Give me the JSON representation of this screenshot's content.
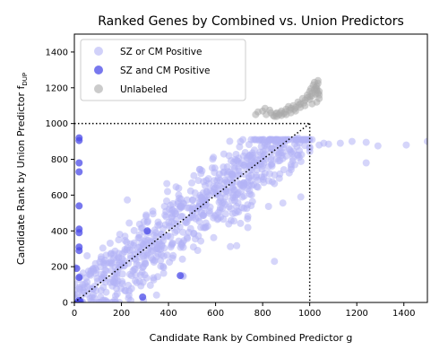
{
  "chart_data": {
    "type": "scatter",
    "title": "Ranked Genes by Combined vs. Union Predictors",
    "xlabel": "Candidate Rank by Combined Predictor g",
    "ylabel": "Candidate Rank by Union Predictor f",
    "ylabel_subscript": "DUP",
    "xlim": [
      0,
      1500
    ],
    "ylim": [
      0,
      1500
    ],
    "xticks": [
      0,
      200,
      400,
      600,
      800,
      1000,
      1200,
      1400
    ],
    "yticks": [
      0,
      200,
      400,
      600,
      800,
      1000,
      1200,
      1400
    ],
    "grid": false,
    "legend_position": "top-left",
    "reference_lines": [
      {
        "style": "dotted",
        "points": [
          [
            0,
            0
          ],
          [
            1000,
            1000
          ]
        ]
      },
      {
        "style": "dotted",
        "points": [
          [
            0,
            1000
          ],
          [
            1000,
            1000
          ]
        ]
      },
      {
        "style": "dotted",
        "points": [
          [
            1000,
            1000
          ],
          [
            1000,
            0
          ]
        ]
      }
    ],
    "series": [
      {
        "name": "SZ or CM Positive",
        "color": "#b3b3f5",
        "generator": "band",
        "count": 760,
        "extra_points": [
          [
            1040,
            880
          ],
          [
            1080,
            885
          ],
          [
            1130,
            890
          ],
          [
            1240,
            895
          ],
          [
            1290,
            875
          ],
          [
            1410,
            880
          ],
          [
            1500,
            900
          ],
          [
            1240,
            780
          ],
          [
            850,
            230
          ],
          [
            460,
            150
          ],
          [
            1010,
            910
          ],
          [
            1060,
            890
          ],
          [
            950,
            920
          ],
          [
            1180,
            900
          ]
        ],
        "values": []
      },
      {
        "name": "SZ and CM Positive",
        "color": "#4b4be8",
        "values": [
          [
            20,
            920
          ],
          [
            20,
            905
          ],
          [
            20,
            780
          ],
          [
            20,
            730
          ],
          [
            20,
            540
          ],
          [
            20,
            410
          ],
          [
            20,
            390
          ],
          [
            20,
            310
          ],
          [
            20,
            290
          ],
          [
            10,
            190
          ],
          [
            20,
            140
          ],
          [
            20,
            10
          ],
          [
            25,
            5
          ],
          [
            15,
            0
          ],
          [
            310,
            400
          ],
          [
            290,
            30
          ],
          [
            450,
            150
          ]
        ]
      },
      {
        "name": "Unlabeled",
        "color": "#a9a9a9",
        "generator": "cluster",
        "values": [
          [
            860,
            1060
          ],
          [
            880,
            1070
          ],
          [
            900,
            1080
          ],
          [
            920,
            1085
          ],
          [
            940,
            1090
          ],
          [
            960,
            1110
          ],
          [
            980,
            1130
          ],
          [
            1000,
            1150
          ],
          [
            1010,
            1170
          ],
          [
            1020,
            1190
          ],
          [
            1030,
            1210
          ],
          [
            1035,
            1240
          ],
          [
            870,
            1050
          ],
          [
            890,
            1055
          ],
          [
            850,
            1040
          ],
          [
            830,
            1075
          ],
          [
            810,
            1085
          ],
          [
            800,
            1070
          ],
          [
            910,
            1095
          ],
          [
            930,
            1100
          ],
          [
            950,
            1120
          ],
          [
            970,
            1140
          ],
          [
            990,
            1160
          ],
          [
            1000,
            1180
          ],
          [
            1005,
            1195
          ],
          [
            1015,
            1215
          ],
          [
            1020,
            1230
          ],
          [
            1025,
            1200
          ],
          [
            1030,
            1185
          ],
          [
            1035,
            1170
          ],
          [
            1040,
            1160
          ],
          [
            1040,
            1140
          ],
          [
            1030,
            1120
          ],
          [
            1010,
            1110
          ],
          [
            980,
            1100
          ],
          [
            960,
            1090
          ],
          [
            940,
            1070
          ],
          [
            920,
            1060
          ],
          [
            900,
            1050
          ],
          [
            880,
            1045
          ],
          [
            860,
            1040
          ],
          [
            780,
            1065
          ],
          [
            770,
            1050
          ],
          [
            990,
            1145
          ],
          [
            1010,
            1155
          ],
          [
            1025,
            1165
          ],
          [
            1000,
            1135
          ],
          [
            975,
            1115
          ],
          [
            955,
            1105
          ],
          [
            935,
            1080
          ],
          [
            915,
            1075
          ],
          [
            895,
            1065
          ],
          [
            875,
            1060
          ],
          [
            855,
            1055
          ],
          [
            835,
            1060
          ],
          [
            815,
            1050
          ],
          [
            845,
            1045
          ],
          [
            1035,
            1225
          ],
          [
            1030,
            1195
          ],
          [
            1040,
            1180
          ]
        ]
      }
    ]
  }
}
